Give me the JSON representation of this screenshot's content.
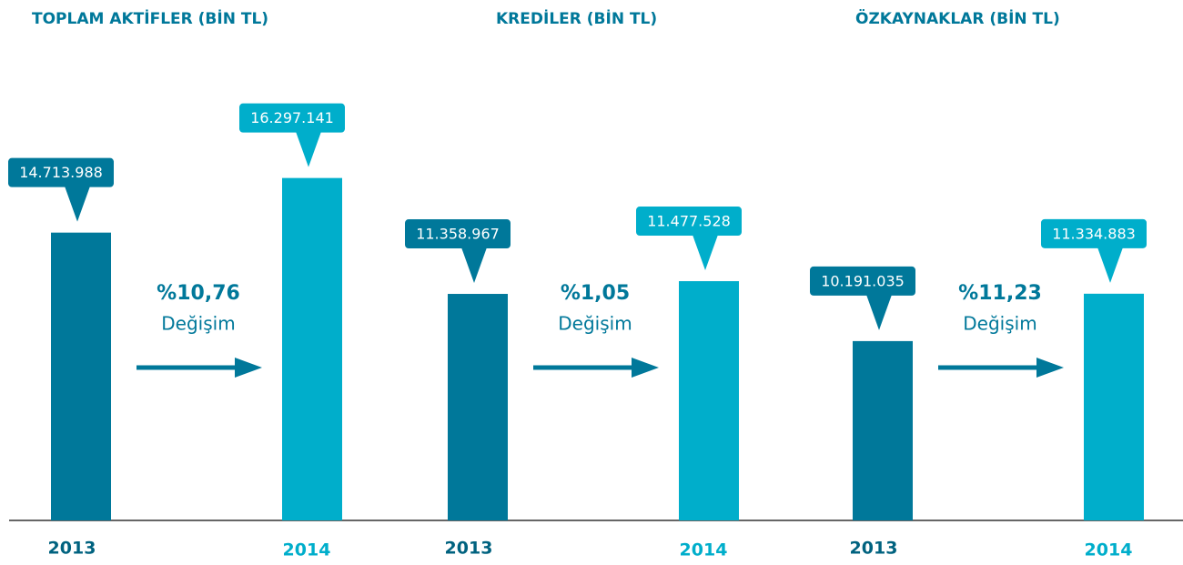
{
  "chart_data": [
    {
      "type": "bar",
      "title": "TOPLAM AKTİFLER (BİN TL)",
      "categories": [
        "2013",
        "2014"
      ],
      "values": [
        14713988,
        16297141
      ],
      "value_labels": [
        "14.713.988",
        "16.297.141"
      ],
      "colors": [
        "#00789a",
        "#00aecb"
      ],
      "ylim": [
        6370000,
        18820000
      ],
      "annotation": "%10,76",
      "annotation_label": "Değişim"
    },
    {
      "type": "bar",
      "title": "KREDİLER (BİN TL)",
      "categories": [
        "2013",
        "2014"
      ],
      "values": [
        11358967,
        11477528
      ],
      "value_labels": [
        "11.358.967",
        "11.477.528"
      ],
      "colors": [
        "#00789a",
        "#00aecb"
      ],
      "ylim": [
        9249000,
        13249000
      ],
      "annotation": "%1,05",
      "annotation_label": "Değişim"
    },
    {
      "type": "bar",
      "title": "ÖZKAYNAKLAR (BİN TL)",
      "categories": [
        "2013",
        "2014"
      ],
      "values": [
        10191035,
        11334883
      ],
      "value_labels": [
        "10.191.035",
        "11.334.883"
      ],
      "colors": [
        "#00789a",
        "#00aecb"
      ],
      "ylim": [
        5861000,
        16230000
      ],
      "annotation": "%11,23",
      "annotation_label": "Değişim"
    }
  ]
}
